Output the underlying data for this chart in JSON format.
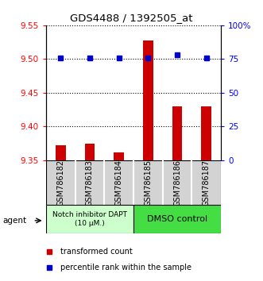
{
  "title": "GDS4488 / 1392505_at",
  "categories": [
    "GSM786182",
    "GSM786183",
    "GSM786184",
    "GSM786185",
    "GSM786186",
    "GSM786187"
  ],
  "red_values": [
    9.372,
    9.375,
    9.362,
    9.528,
    9.43,
    9.43
  ],
  "blue_values": [
    76,
    76,
    76,
    76,
    78,
    76
  ],
  "ylim_left": [
    9.35,
    9.55
  ],
  "ylim_right": [
    0,
    100
  ],
  "yticks_left": [
    9.35,
    9.4,
    9.45,
    9.5,
    9.55
  ],
  "yticks_right": [
    0,
    25,
    50,
    75,
    100
  ],
  "group1_label": "Notch inhibitor DAPT\n(10 μM.)",
  "group2_label": "DMSO control",
  "legend_red": "transformed count",
  "legend_blue": "percentile rank within the sample",
  "agent_label": "agent",
  "bar_color": "#cc0000",
  "dot_color": "#0000cc",
  "group1_bg": "#ccffcc",
  "group2_bg": "#44dd44",
  "tick_area_bg": "#d3d3d3",
  "bar_bottom": 9.35,
  "bar_width": 0.35
}
